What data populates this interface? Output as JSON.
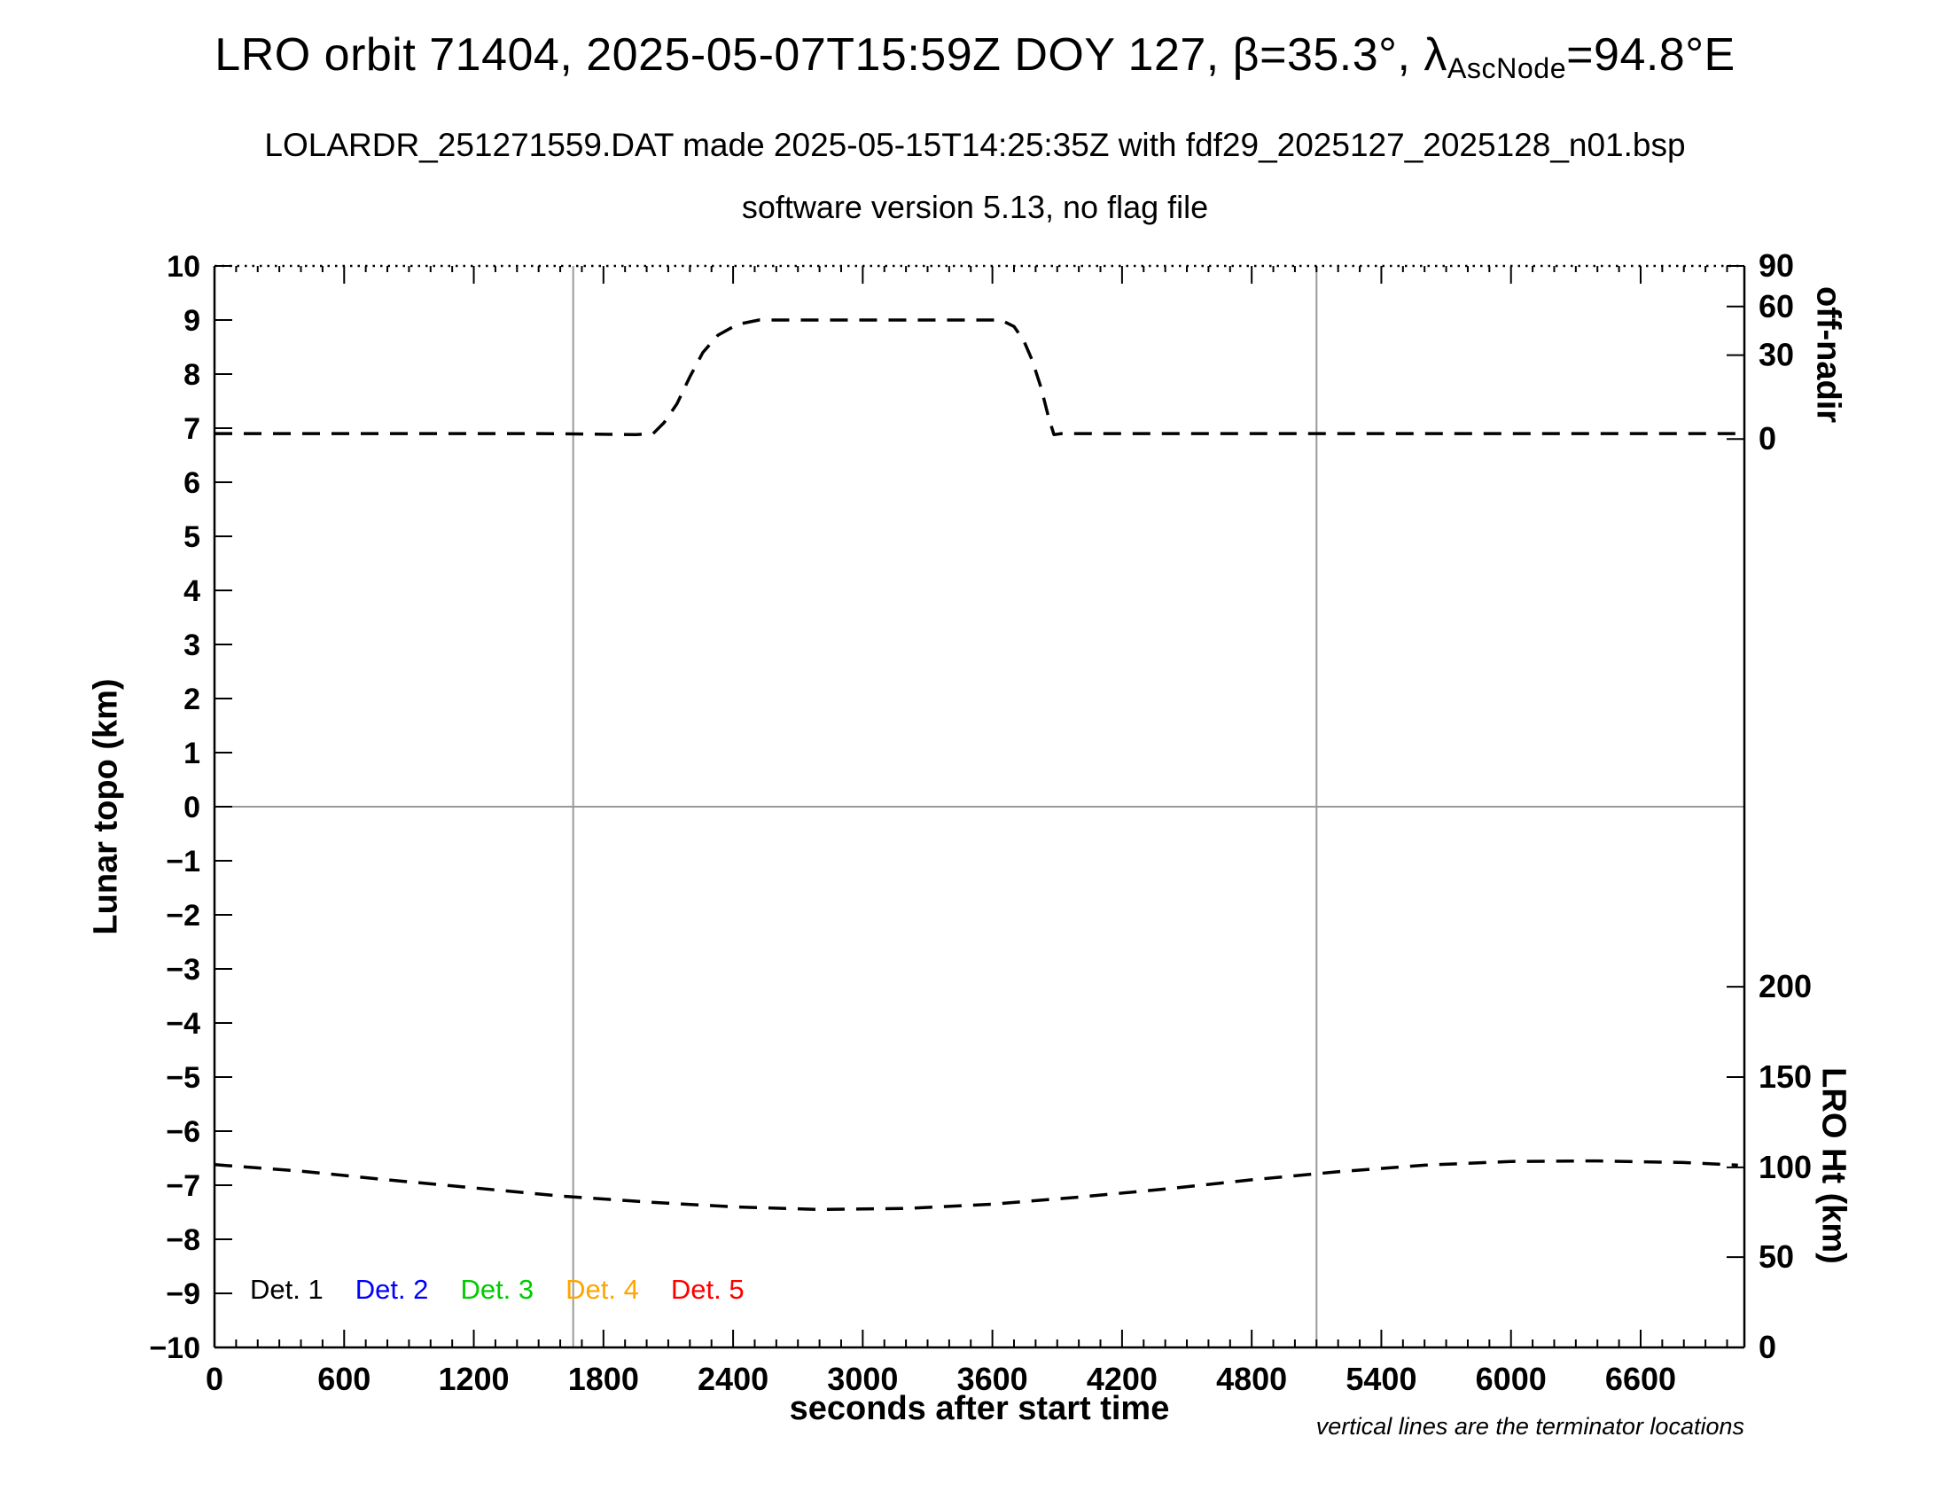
{
  "titles": {
    "main_prefix": "LRO orbit 71404, 2025-05-07T15:59Z DOY 127, β=35.3°, λ",
    "main_sub": "AscNode",
    "main_suffix": "=94.8°E",
    "line2": "LOLARDR_251271559.DAT made 2025-05-15T14:25:35Z with fdf29_2025127_2025128_n01.bsp",
    "line3": "software version 5.13, no flag file"
  },
  "axes": {
    "left_title": "Lunar topo (km)",
    "bottom_title": "seconds after start time",
    "right_top_title": "off-nadir",
    "right_bottom_title": "LRO Ht (km)"
  },
  "footnote": "vertical lines are the terminator locations",
  "legend": {
    "position": "bottom-left-inside",
    "items": [
      {
        "label": "Det. 1",
        "color": "#000000"
      },
      {
        "label": "Det. 2",
        "color": "#0000ff"
      },
      {
        "label": "Det. 3",
        "color": "#00cc00"
      },
      {
        "label": "Det. 4",
        "color": "#ffa500"
      },
      {
        "label": "Det. 5",
        "color": "#ff0000"
      }
    ]
  },
  "chart_data": {
    "type": "line",
    "title": "LRO orbit 71404, 2025-05-07T15:59Z DOY 127, β=35.3°, λAscNode=94.8°E",
    "subtitle": "LOLARDR_251271559.DAT made 2025-05-15T14:25:35Z with fdf29_2025127_2025128_n01.bsp",
    "subtitle2": "software version 5.13, no flag file",
    "xlabel": "seconds after start time",
    "ylabel_left": "Lunar topo (km)",
    "ylabel_right_top": "off-nadir",
    "ylabel_right_bottom": "LRO Ht (km)",
    "xlim": [
      0,
      7080
    ],
    "ylim_left": [
      -10,
      10
    ],
    "grid": false,
    "x_ticks": [
      0,
      600,
      1200,
      1800,
      2400,
      3000,
      3600,
      4200,
      4800,
      5400,
      6000,
      6600
    ],
    "x_minor_step": 100,
    "y_ticks_left": [
      10,
      9,
      8,
      7,
      6,
      5,
      4,
      3,
      2,
      1,
      0,
      -1,
      -2,
      -3,
      -4,
      -5,
      -6,
      -7,
      -8,
      -9,
      -10
    ],
    "right_top_ticks": [
      {
        "label": "90",
        "y": 10
      },
      {
        "label": "60",
        "y": 9.25
      },
      {
        "label": "30",
        "y": 8.35
      },
      {
        "label": "0",
        "y": 6.8
      }
    ],
    "right_bottom_ticks": [
      {
        "label": "200",
        "y": -3.33
      },
      {
        "label": "150",
        "y": -5.0
      },
      {
        "label": "100",
        "y": -6.67
      },
      {
        "label": "50",
        "y": -8.33
      },
      {
        "label": "0",
        "y": -10.0
      }
    ],
    "terminator_lines_x": [
      1660,
      5100
    ],
    "zero_line_y": 0,
    "reference_line_color": "#999999",
    "series": [
      {
        "name": "off-nadir angle",
        "axis": "right-top",
        "style": "dashed",
        "color": "#000000",
        "note": "flat segment sits near 0 deg off-nadir; plateau is a slew of roughly 50-55 deg between ~2450s and ~3650s",
        "points": [
          [
            0,
            6.9
          ],
          [
            500,
            6.9
          ],
          [
            1000,
            6.9
          ],
          [
            1500,
            6.9
          ],
          [
            1950,
            6.88
          ],
          [
            2030,
            6.9
          ],
          [
            2080,
            7.1
          ],
          [
            2140,
            7.45
          ],
          [
            2200,
            7.95
          ],
          [
            2260,
            8.4
          ],
          [
            2330,
            8.72
          ],
          [
            2420,
            8.92
          ],
          [
            2520,
            9.0
          ],
          [
            3000,
            9.0
          ],
          [
            3640,
            9.0
          ],
          [
            3700,
            8.88
          ],
          [
            3745,
            8.62
          ],
          [
            3785,
            8.25
          ],
          [
            3825,
            7.75
          ],
          [
            3860,
            7.2
          ],
          [
            3885,
            6.88
          ],
          [
            3920,
            6.9
          ],
          [
            4500,
            6.9
          ],
          [
            5500,
            6.9
          ],
          [
            6500,
            6.9
          ],
          [
            7050,
            6.9
          ]
        ]
      },
      {
        "name": "LRO height",
        "axis": "right-bottom",
        "style": "dashed",
        "color": "#000000",
        "note": "spacecraft altitude: ~101 km at start, minimum ~76 km near 2800s, maximum ~104 km near 6200s",
        "points": [
          [
            0,
            -6.62
          ],
          [
            400,
            -6.74
          ],
          [
            800,
            -6.9
          ],
          [
            1200,
            -7.05
          ],
          [
            1600,
            -7.2
          ],
          [
            2000,
            -7.31
          ],
          [
            2400,
            -7.4
          ],
          [
            2800,
            -7.45
          ],
          [
            3200,
            -7.43
          ],
          [
            3600,
            -7.35
          ],
          [
            4000,
            -7.22
          ],
          [
            4400,
            -7.07
          ],
          [
            4800,
            -6.9
          ],
          [
            5200,
            -6.75
          ],
          [
            5600,
            -6.63
          ],
          [
            6000,
            -6.56
          ],
          [
            6400,
            -6.55
          ],
          [
            6800,
            -6.58
          ],
          [
            7050,
            -6.63
          ]
        ]
      }
    ]
  }
}
